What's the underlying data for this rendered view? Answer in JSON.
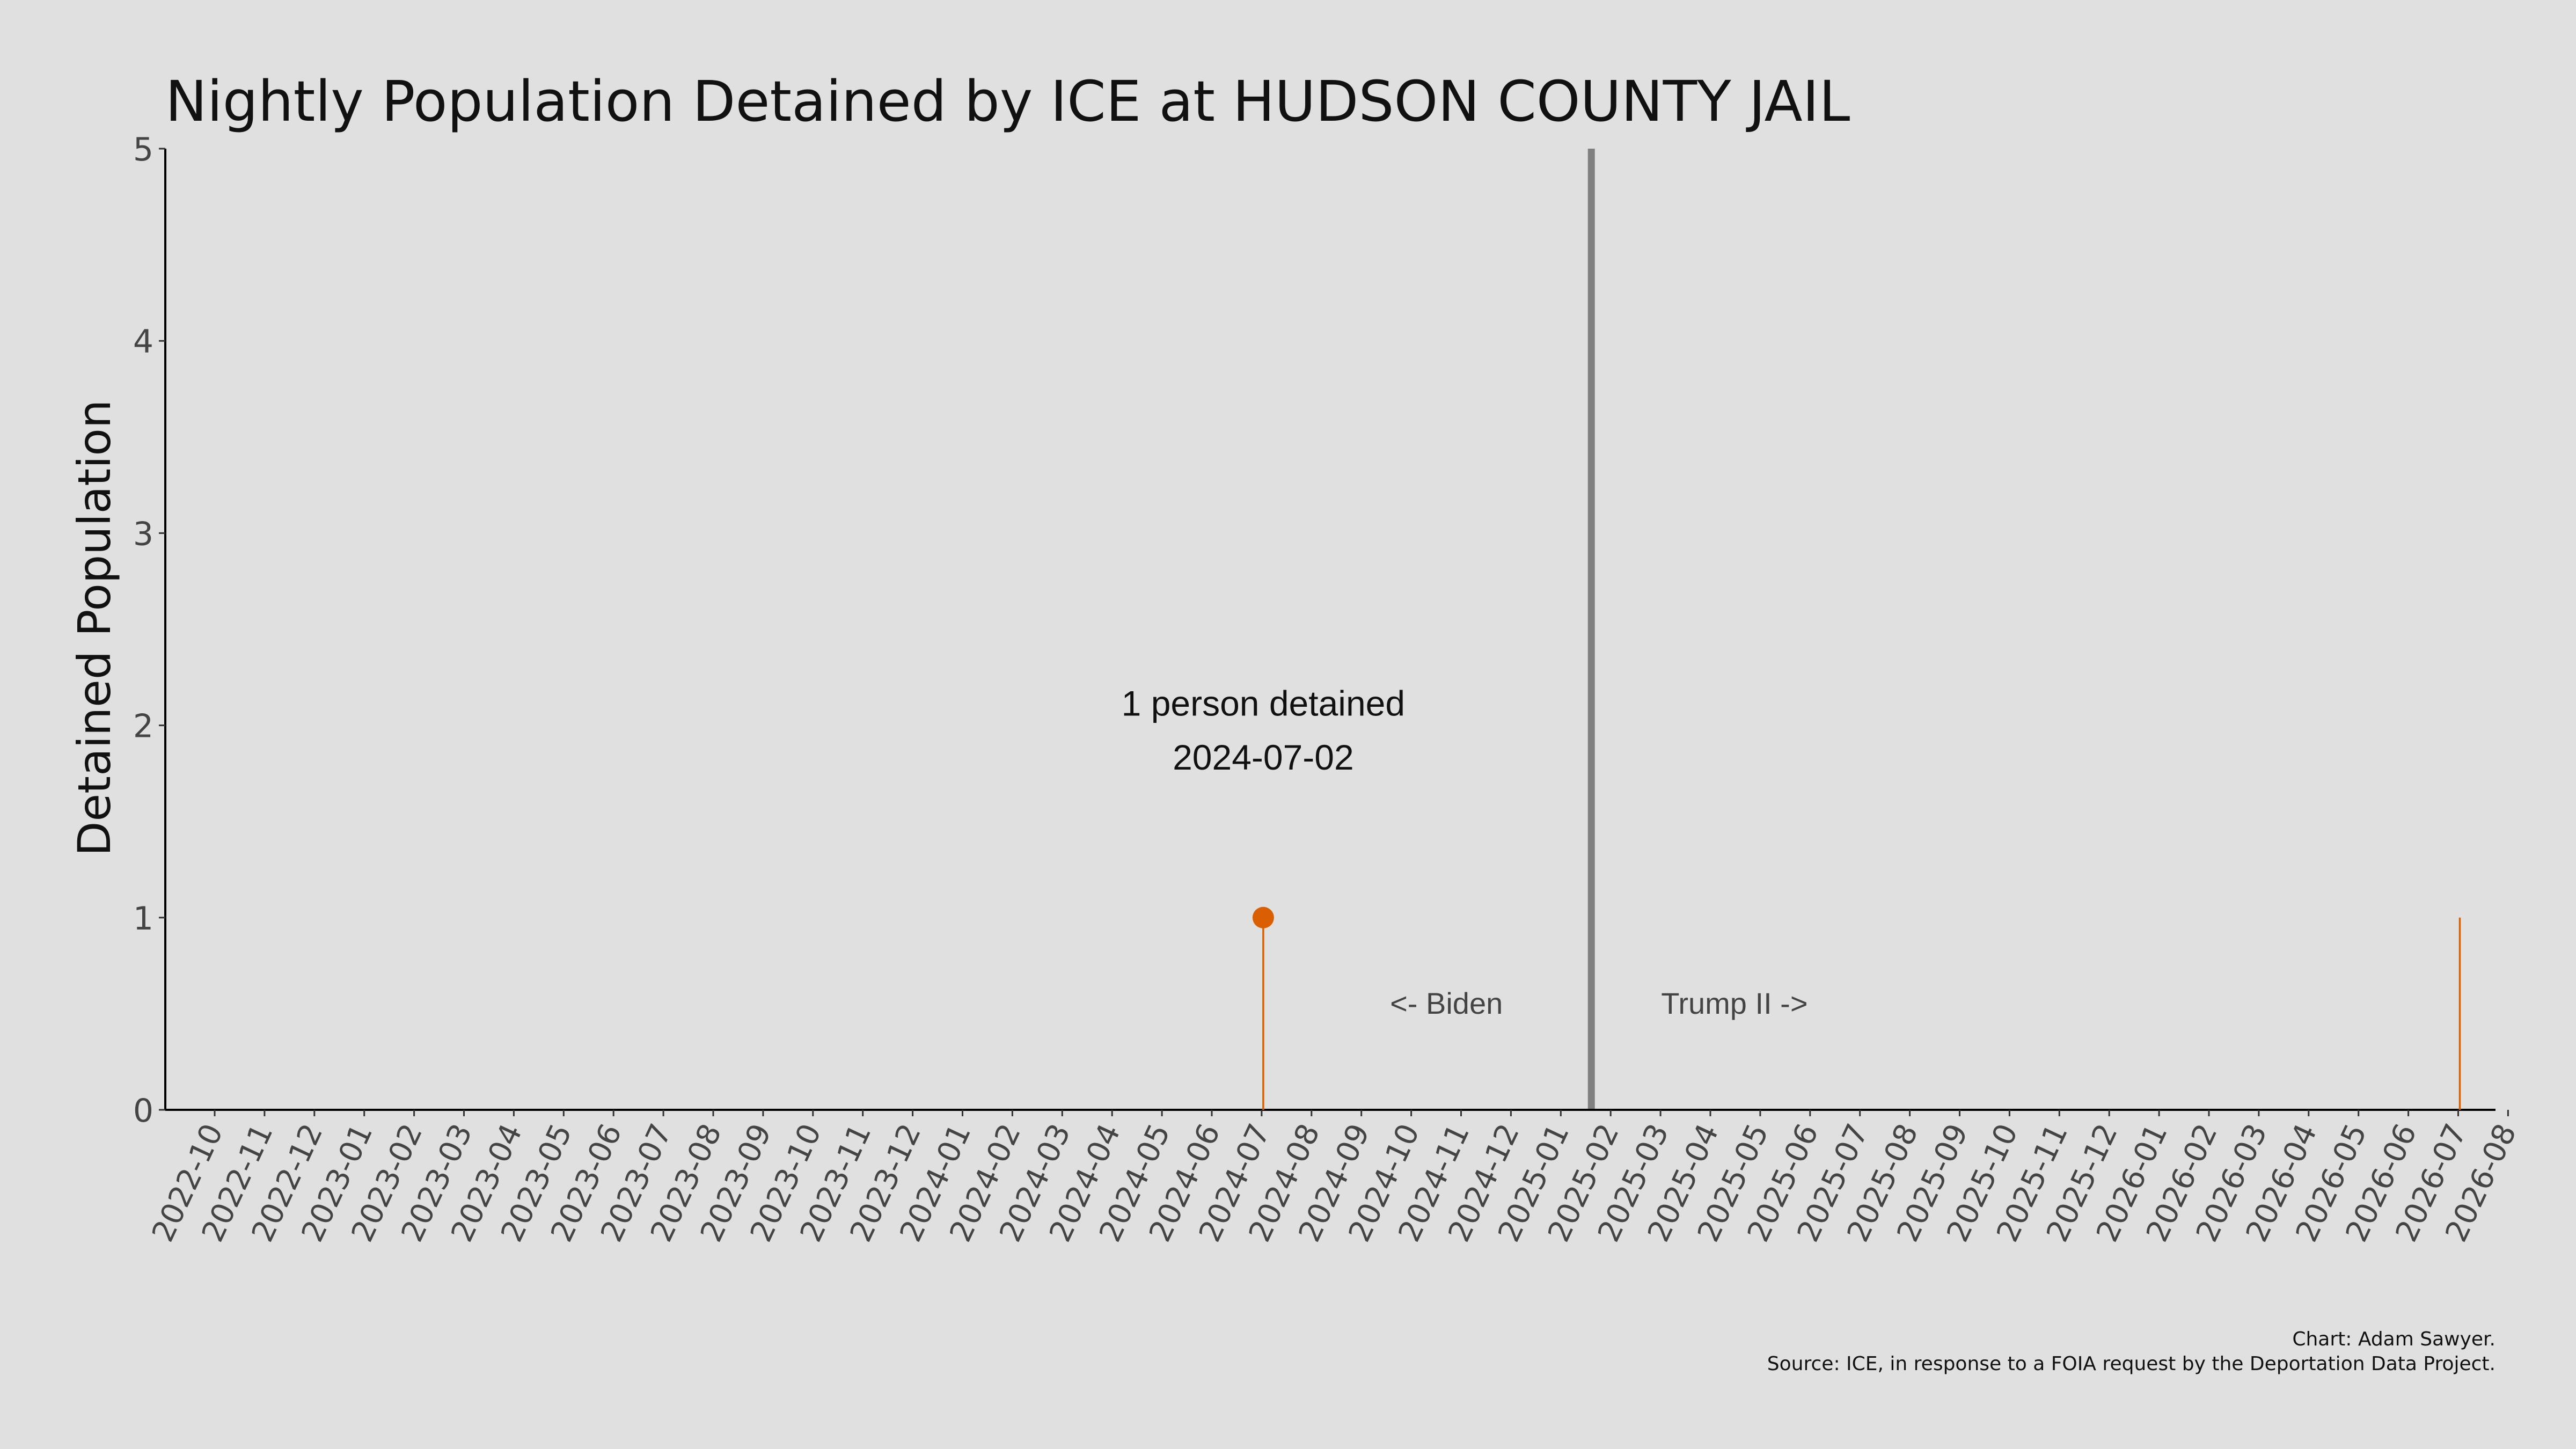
{
  "chart_data": {
    "type": "line",
    "title": "Nightly Population Detained by ICE at HUDSON COUNTY JAIL",
    "ylabel": "Detained Population",
    "xlabel": "",
    "ylim": [
      0,
      5
    ],
    "y_ticks": [
      "0",
      "1",
      "2",
      "3",
      "4",
      "5"
    ],
    "x_tick_labels": [
      "2022-10",
      "2022-11",
      "2022-12",
      "2023-01",
      "2023-02",
      "2023-03",
      "2023-04",
      "2023-05",
      "2023-06",
      "2023-07",
      "2023-08",
      "2023-09",
      "2023-10",
      "2023-11",
      "2023-12",
      "2024-01",
      "2024-02",
      "2024-03",
      "2024-04",
      "2024-05",
      "2024-06",
      "2024-07",
      "2024-08",
      "2024-09",
      "2024-10",
      "2024-11",
      "2024-12",
      "2025-01",
      "2025-02",
      "2025-03",
      "2025-04",
      "2025-05",
      "2025-06",
      "2025-07",
      "2025-08",
      "2025-09",
      "2025-10",
      "2025-11",
      "2025-12",
      "2026-01",
      "2026-02",
      "2026-03",
      "2026-04",
      "2026-05",
      "2026-06",
      "2026-07",
      "2026-08"
    ],
    "series": [
      {
        "points": [
          {
            "date": "2024-07-02",
            "value": 1
          },
          {
            "date": "2026-07-02",
            "value": 1
          }
        ]
      }
    ],
    "highlight": {
      "date": "2024-07-02",
      "value": 1,
      "color": "#d95f02"
    },
    "annotation": {
      "line1": "1 person detained",
      "line2": "2024-07-02"
    },
    "divider": {
      "date": "2025-01-20",
      "left_label": "<- Biden",
      "right_label": "Trump II ->"
    },
    "grid": false,
    "colors": {
      "line": "#d95f02",
      "point": "#d95f02",
      "divider": "#808080",
      "axis": "#000000"
    }
  },
  "credit": {
    "line1": "Chart: Adam Sawyer.",
    "line2": "Source: ICE, in response to a FOIA request by the Deportation Data Project."
  }
}
